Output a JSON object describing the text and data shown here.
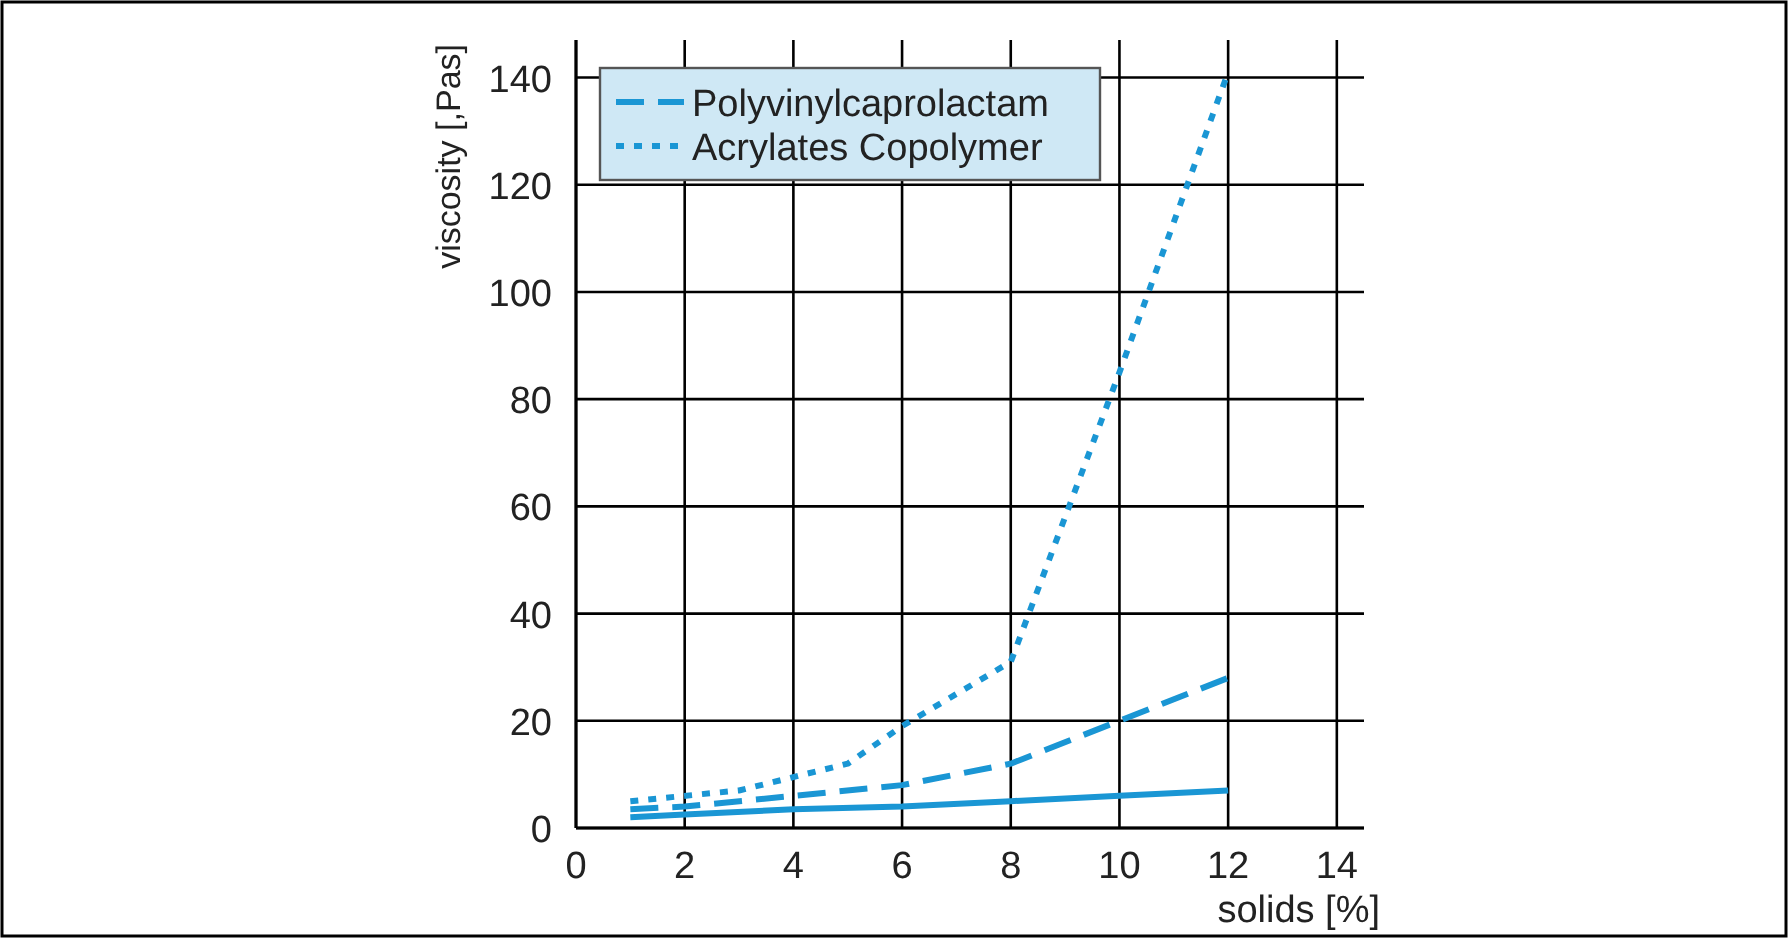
{
  "chart_data": {
    "type": "line",
    "xlabel": "solids [%]",
    "ylabel": "viscosity [,Pas]",
    "xlim": [
      0,
      14.5
    ],
    "ylim": [
      0,
      147
    ],
    "xticks": [
      0,
      2,
      4,
      6,
      8,
      10,
      12,
      14
    ],
    "yticks": [
      0,
      20,
      40,
      60,
      80,
      100,
      120,
      140
    ],
    "grid": true,
    "legend": "top left",
    "marker": "none",
    "series": [
      {
        "color": "#1a96d4",
        "line_style": "solid",
        "x": [
          1,
          2,
          4,
          6,
          8,
          10,
          12
        ],
        "values": [
          2,
          2.5,
          3.5,
          4,
          5,
          6,
          7
        ]
      },
      {
        "name": "Polyvinylcaprolactam",
        "color": "#1a96d4",
        "line_style": "dashed",
        "x": [
          1,
          2,
          4,
          6,
          8,
          10,
          12
        ],
        "values": [
          3.5,
          4,
          6,
          8,
          12,
          20,
          28
        ]
      },
      {
        "name": "Acrylates Copolymer",
        "color": "#1a96d4",
        "line_style": "dotted",
        "x": [
          1,
          3,
          5,
          6,
          8,
          10,
          12
        ],
        "values": [
          5,
          7,
          12,
          19,
          31,
          85,
          141
        ]
      }
    ]
  }
}
